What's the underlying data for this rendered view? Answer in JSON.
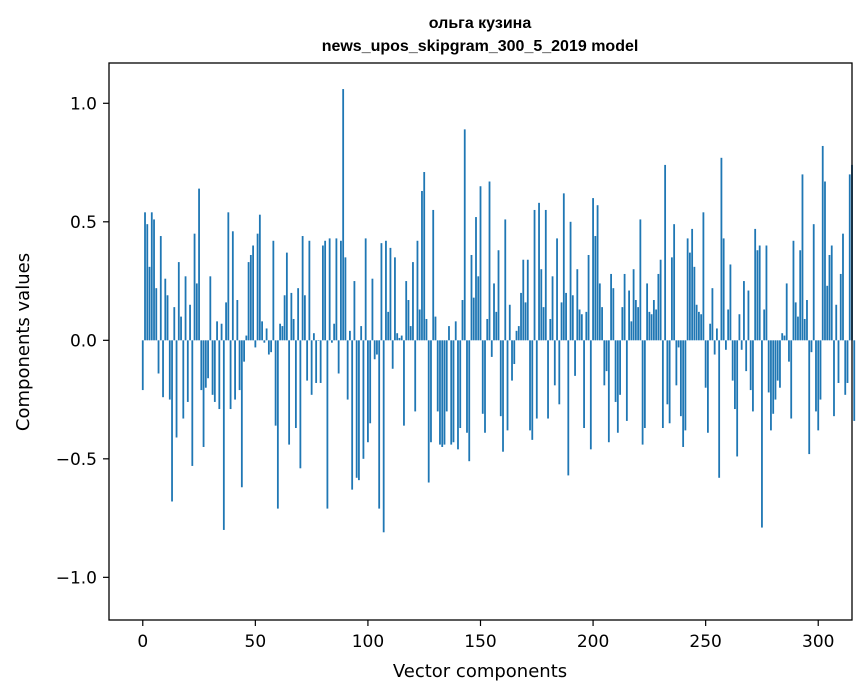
{
  "chart_data": {
    "type": "bar",
    "title": "ольга кузина",
    "subtitle": "news_upos_skipgram_300_5_2019 model",
    "xlabel": "Vector components",
    "ylabel": "Components values",
    "xlim": [
      -15,
      315
    ],
    "ylim": [
      -1.18,
      1.17
    ],
    "xticks": [
      0,
      50,
      100,
      150,
      200,
      250,
      300
    ],
    "xtick_labels": [
      "0",
      "50",
      "100",
      "150",
      "200",
      "250",
      "300"
    ],
    "yticks": [
      -1.0,
      -0.5,
      0.0,
      0.5,
      1.0
    ],
    "ytick_labels": [
      "−1.0",
      "−0.5",
      "0.0",
      "0.5",
      "1.0"
    ],
    "bar_color": "#1f77b4",
    "grid": false,
    "values": [
      -0.21,
      0.54,
      0.49,
      0.31,
      0.54,
      0.51,
      0.22,
      -0.14,
      0.44,
      -0.24,
      0.26,
      0.19,
      -0.25,
      -0.68,
      0.14,
      -0.41,
      0.33,
      0.1,
      -0.33,
      0.27,
      -0.26,
      0.15,
      -0.53,
      0.45,
      0.24,
      0.64,
      -0.21,
      -0.45,
      -0.2,
      -0.16,
      0.27,
      -0.23,
      -0.26,
      0.08,
      -0.29,
      0.07,
      -0.8,
      0.16,
      0.54,
      -0.29,
      0.46,
      -0.25,
      0.17,
      -0.21,
      -0.62,
      -0.09,
      0.02,
      0.33,
      0.36,
      0.4,
      -0.03,
      0.45,
      0.53,
      0.08,
      -0.01,
      0.05,
      -0.06,
      -0.05,
      0.42,
      -0.36,
      -0.71,
      0.07,
      0.06,
      0.19,
      0.37,
      -0.44,
      0.2,
      0.09,
      -0.37,
      0.22,
      -0.54,
      0.44,
      0.19,
      -0.17,
      0.42,
      -0.23,
      0.03,
      -0.18,
      0.0,
      -0.18,
      0.4,
      0.42,
      -0.71,
      0.43,
      -0.01,
      0.07,
      0.43,
      -0.14,
      0.42,
      1.06,
      0.35,
      -0.25,
      0.04,
      -0.63,
      0.25,
      -0.58,
      -0.59,
      0.06,
      -0.5,
      0.43,
      -0.43,
      -0.35,
      0.26,
      -0.08,
      -0.06,
      -0.71,
      0.41,
      -0.81,
      0.42,
      0.12,
      0.39,
      -0.12,
      0.35,
      0.03,
      0.01,
      0.02,
      -0.36,
      0.25,
      0.17,
      0.06,
      0.33,
      -0.3,
      0.42,
      0.13,
      0.63,
      0.71,
      0.09,
      -0.6,
      -0.43,
      0.55,
      0.1,
      -0.3,
      -0.44,
      -0.45,
      -0.44,
      -0.3,
      0.06,
      -0.44,
      -0.43,
      0.08,
      -0.46,
      -0.37,
      0.17,
      0.89,
      -0.39,
      -0.51,
      0.36,
      0.18,
      0.52,
      0.27,
      0.65,
      -0.31,
      -0.39,
      0.09,
      0.67,
      -0.07,
      0.24,
      0.12,
      0.38,
      -0.32,
      -0.47,
      0.51,
      -0.38,
      0.15,
      -0.17,
      -0.1,
      0.04,
      0.06,
      0.2,
      0.34,
      0.16,
      0.34,
      -0.38,
      -0.42,
      0.55,
      -0.33,
      0.58,
      0.3,
      0.14,
      0.55,
      -0.33,
      0.09,
      0.27,
      -0.19,
      0.43,
      -0.27,
      0.16,
      0.62,
      0.2,
      -0.57,
      0.5,
      0.19,
      -0.15,
      0.3,
      0.13,
      0.11,
      -0.37,
      0.12,
      0.36,
      -0.46,
      0.6,
      0.44,
      0.57,
      0.24,
      0.14,
      -0.19,
      -0.13,
      -0.43,
      0.28,
      0.22,
      -0.26,
      -0.39,
      -0.23,
      0.14,
      0.28,
      -0.34,
      0.21,
      0.08,
      0.3,
      0.17,
      0.14,
      0.51,
      -0.44,
      -0.37,
      0.24,
      0.12,
      0.11,
      0.17,
      0.13,
      0.28,
      0.34,
      -0.37,
      0.74,
      -0.27,
      -0.35,
      0.35,
      0.49,
      -0.19,
      -0.03,
      -0.32,
      -0.45,
      -0.38,
      0.43,
      0.37,
      0.47,
      0.31,
      0.15,
      0.12,
      0.11,
      0.54,
      -0.2,
      -0.39,
      0.07,
      0.22,
      -0.06,
      0.05,
      -0.58,
      0.77,
      0.43,
      -0.04,
      0.13,
      0.32,
      -0.17,
      -0.29,
      -0.49,
      0.11,
      -0.04,
      0.25,
      -0.13,
      0.21,
      -0.21,
      -0.3,
      0.47,
      0.38,
      0.4,
      -0.79,
      0.13,
      0.4,
      -0.22,
      -0.38,
      -0.31,
      -0.25,
      -0.17,
      -0.2,
      0.03,
      0.02,
      0.24,
      -0.09,
      -0.33,
      0.42,
      0.16,
      0.1,
      0.38,
      0.7,
      0.09,
      0.17,
      -0.48,
      -0.05,
      0.49,
      -0.3,
      -0.38,
      -0.25,
      0.82,
      0.67,
      0.23,
      0.36,
      0.4,
      -0.32,
      0.15,
      -0.18,
      0.28,
      0.45,
      -0.23,
      -0.18,
      0.7,
      0.74,
      -0.34
    ]
  }
}
